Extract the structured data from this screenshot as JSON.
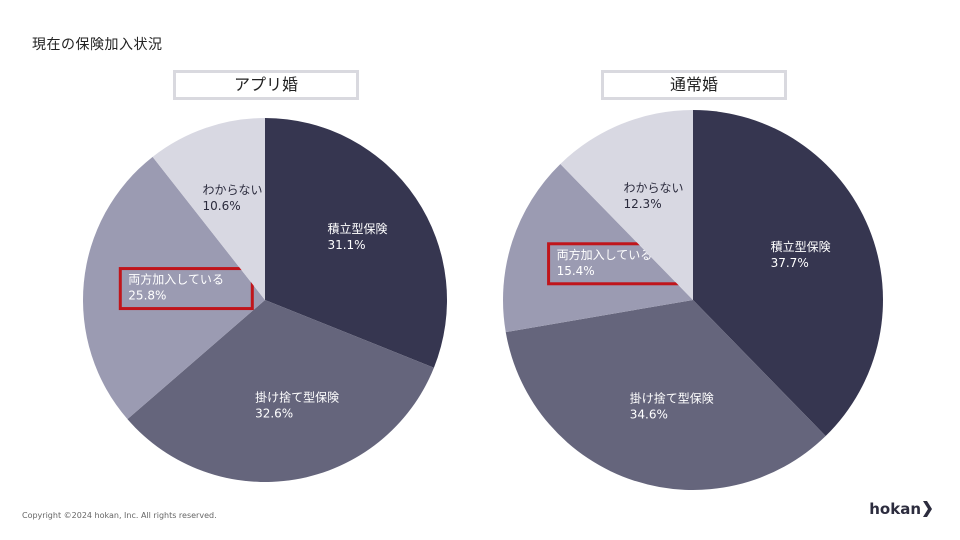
{
  "page_title": "現在の保険加入状況",
  "footer": {
    "copyright": "Copyright ©2024 hokan, Inc. All rights reserved.",
    "logo_text": "hokan"
  },
  "colors": {
    "slice_1": "#363650",
    "slice_2": "#65657c",
    "slice_3": "#9b9bb2",
    "slice_4": "#d8d8e2",
    "highlight_border": "#c0151b"
  },
  "chart_data": [
    {
      "type": "pie",
      "title": "アプリ婚",
      "categories": [
        "積立型保険",
        "掛け捨て型保険",
        "両方加入している",
        "わからない"
      ],
      "values": [
        31.1,
        32.6,
        25.8,
        10.6
      ],
      "value_labels": [
        "31.1%",
        "32.6%",
        "25.8%",
        "10.6%"
      ],
      "highlighted": "両方加入している"
    },
    {
      "type": "pie",
      "title": "通常婚",
      "categories": [
        "積立型保険",
        "掛け捨て型保険",
        "両方加入している",
        "わからない"
      ],
      "values": [
        37.7,
        34.6,
        15.4,
        12.3
      ],
      "value_labels": [
        "37.7%",
        "34.6%",
        "15.4%",
        "12.3%"
      ],
      "highlighted": "両方加入している"
    }
  ]
}
